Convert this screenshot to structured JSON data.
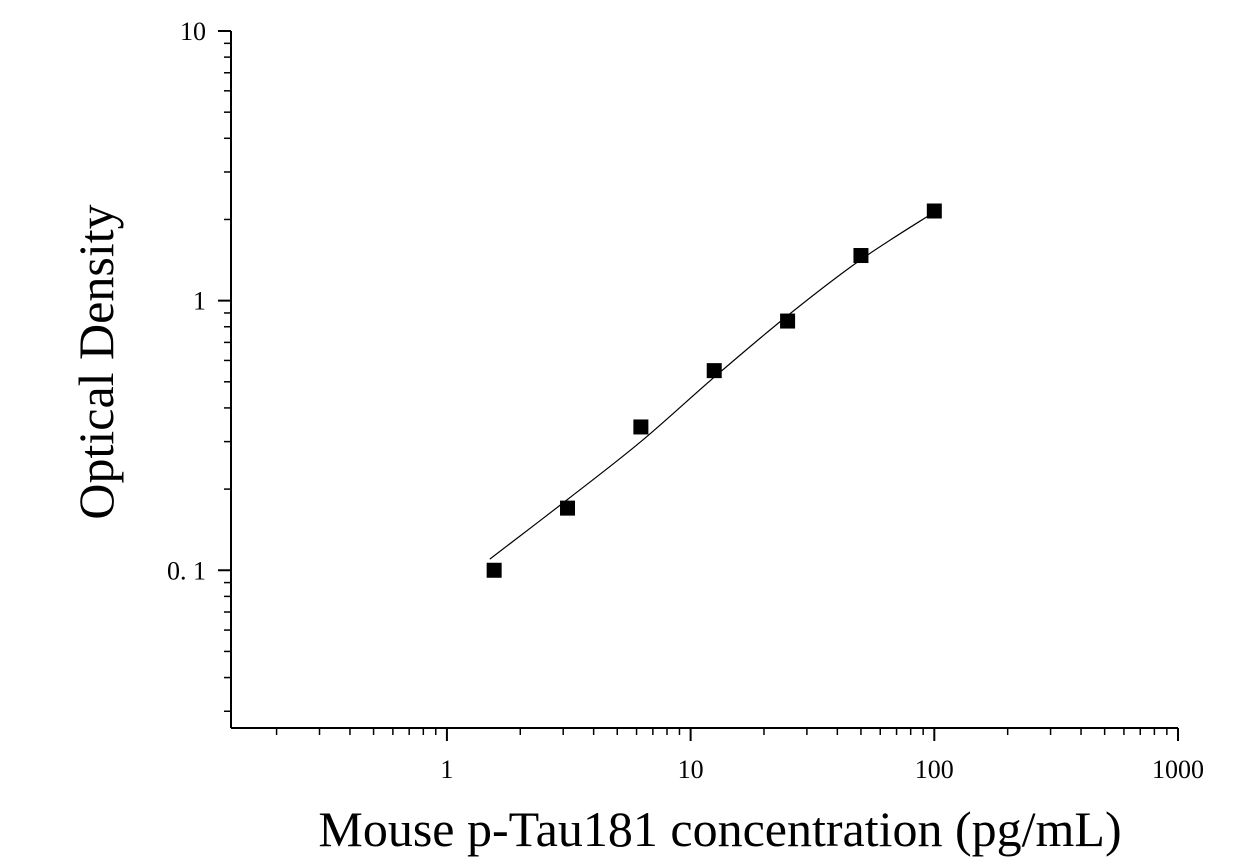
{
  "chart_data": {
    "type": "scatter",
    "title": "",
    "xlabel": "Mouse p-Tau181 concentration (pg/mL)",
    "ylabel": "Optical Density",
    "xscale": "log",
    "yscale": "log",
    "xlim": [
      0.13,
      1000
    ],
    "ylim": [
      0.026,
      10
    ],
    "grid": false,
    "legend": "none",
    "x_ticks": [
      {
        "value": 1,
        "label": "1"
      },
      {
        "value": 10,
        "label": "10"
      },
      {
        "value": 100,
        "label": "100"
      },
      {
        "value": 1000,
        "label": "1000"
      }
    ],
    "y_ticks": [
      {
        "value": 0.1,
        "label": "0. 1"
      },
      {
        "value": 1,
        "label": "1"
      },
      {
        "value": 10,
        "label": "10"
      }
    ],
    "series": [
      {
        "marker": "square",
        "color": "#000000",
        "points": [
          {
            "x": 1.5625,
            "y": 0.1
          },
          {
            "x": 3.125,
            "y": 0.17
          },
          {
            "x": 6.25,
            "y": 0.34
          },
          {
            "x": 12.5,
            "y": 0.55
          },
          {
            "x": 25,
            "y": 0.84
          },
          {
            "x": 50,
            "y": 1.47
          },
          {
            "x": 100,
            "y": 2.15
          }
        ]
      }
    ],
    "fit_curve": {
      "color": "#000000",
      "points": [
        {
          "x": 1.5,
          "y": 0.11
        },
        {
          "x": 3.125,
          "y": 0.183
        },
        {
          "x": 6.25,
          "y": 0.3
        },
        {
          "x": 12.5,
          "y": 0.52
        },
        {
          "x": 25,
          "y": 0.88
        },
        {
          "x": 50,
          "y": 1.42
        },
        {
          "x": 100,
          "y": 2.13
        }
      ]
    }
  }
}
